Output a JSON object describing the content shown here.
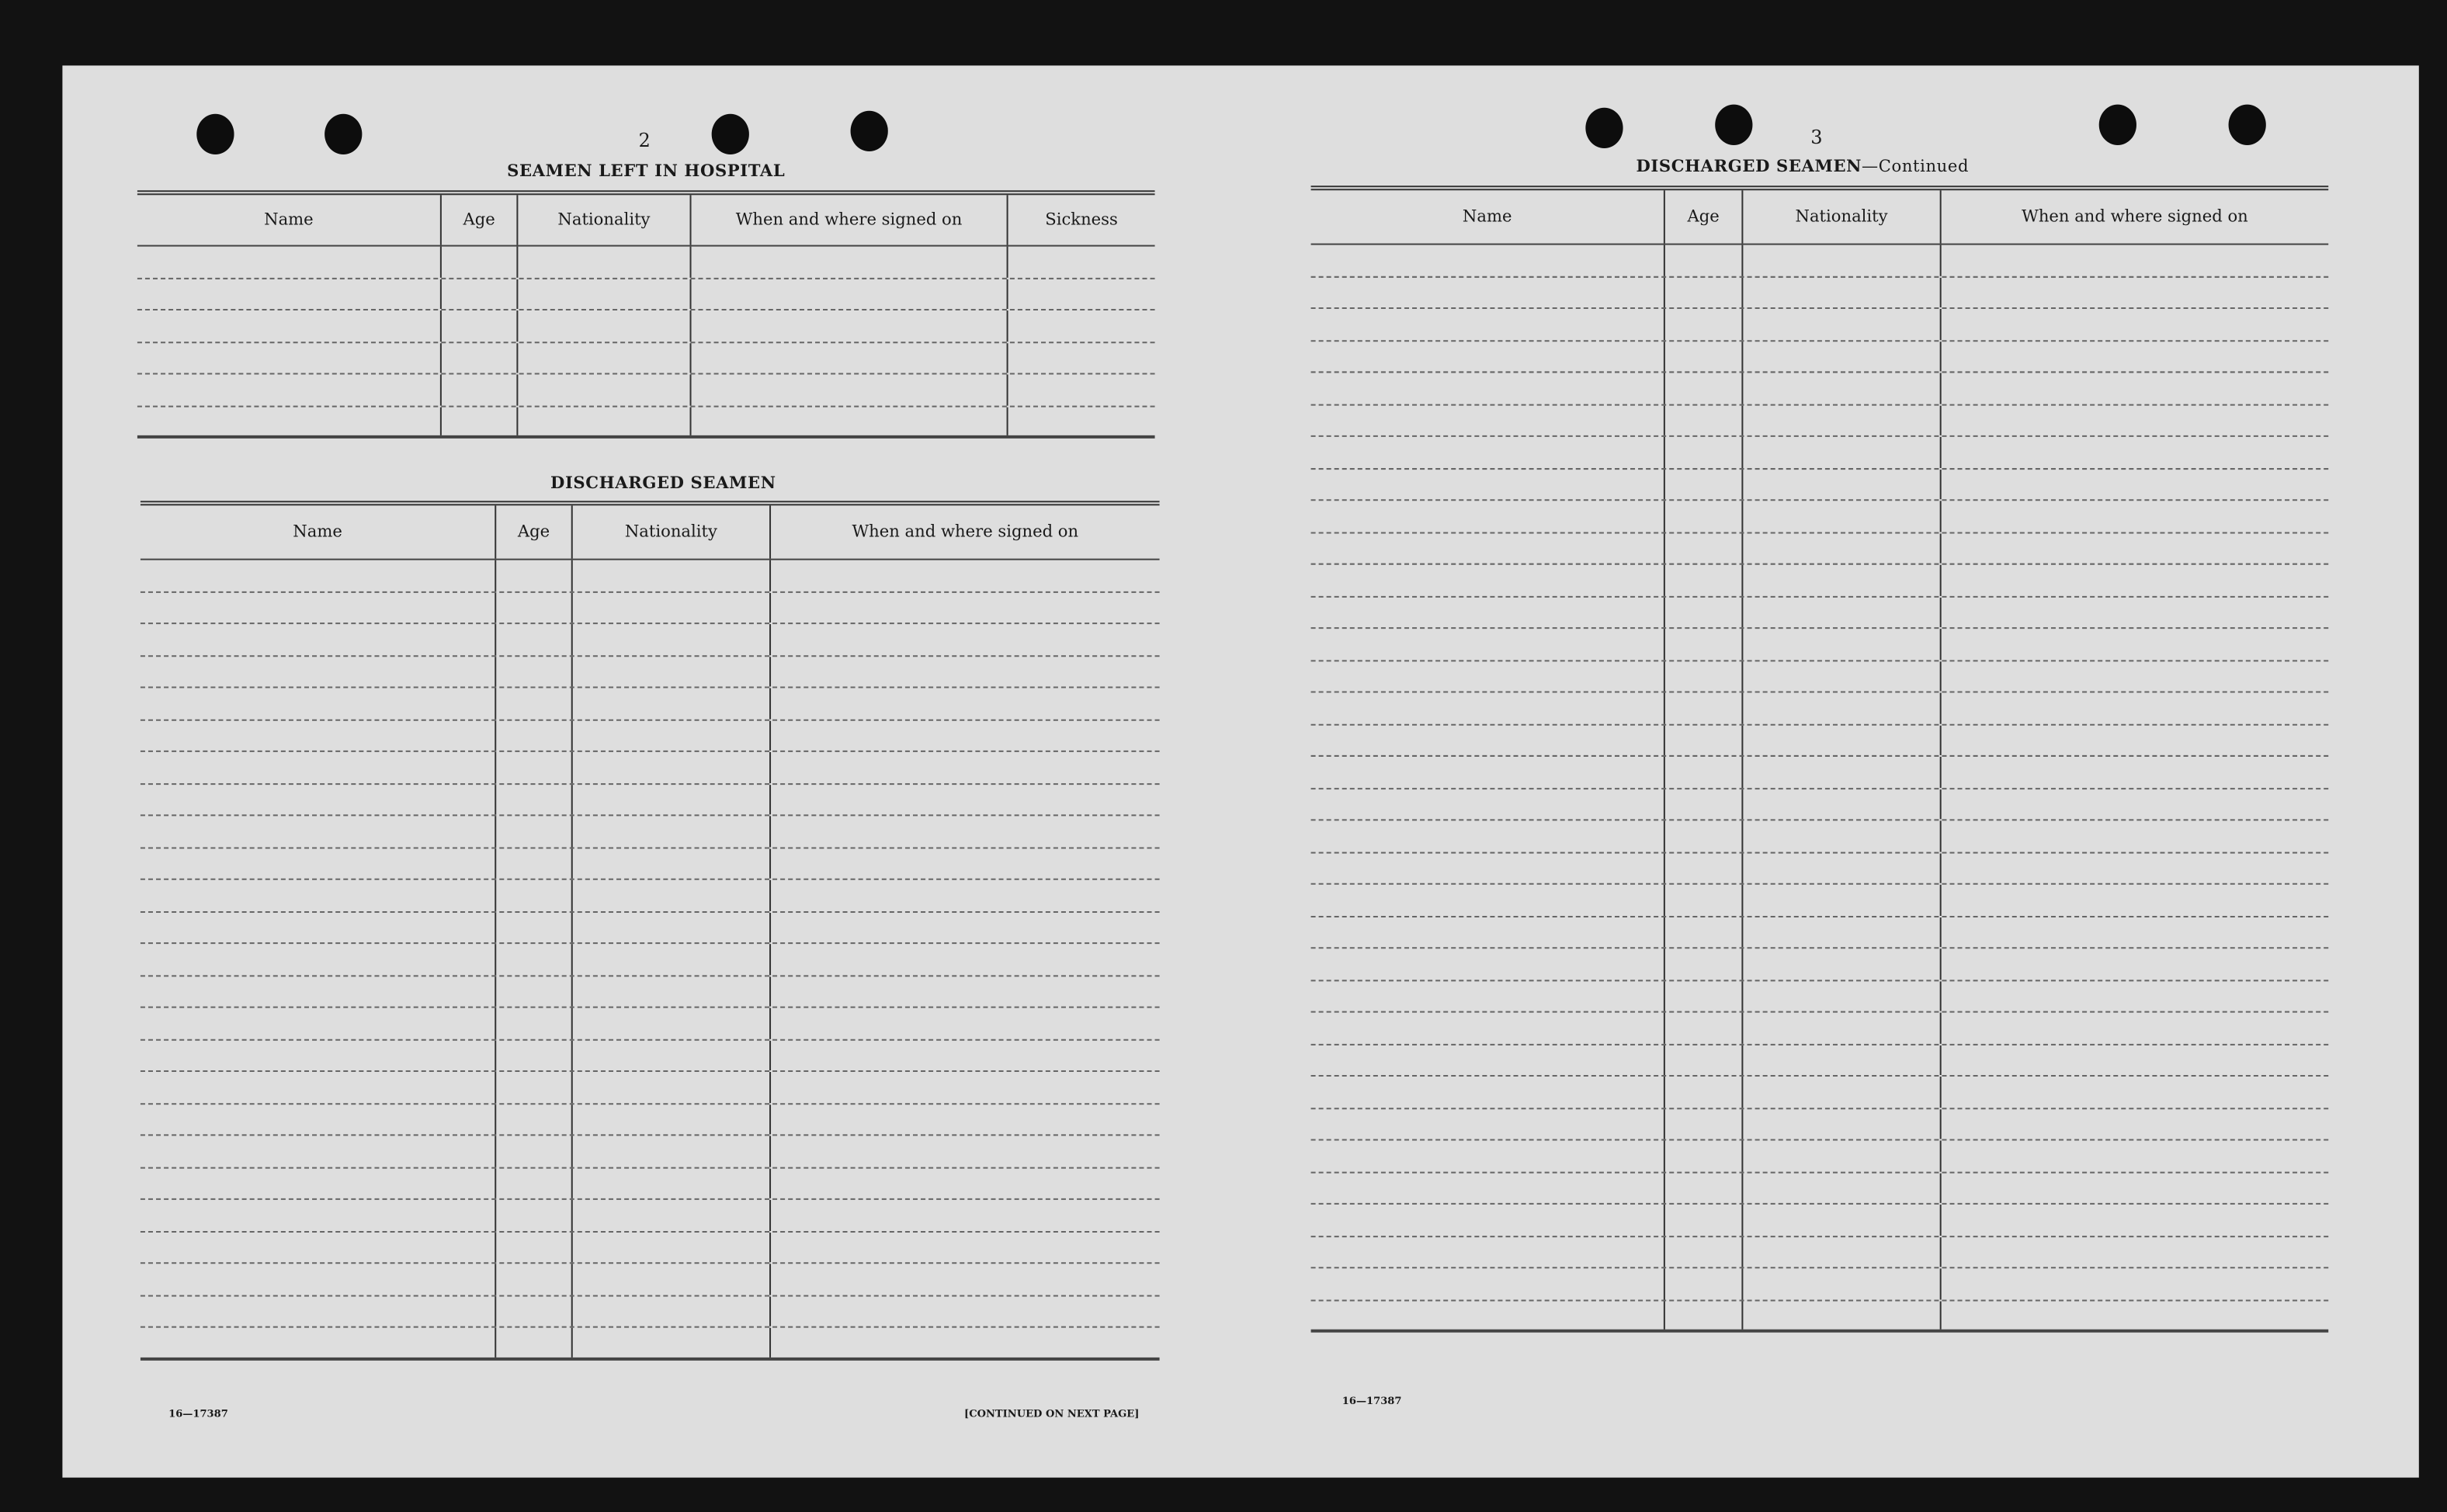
{
  "left_page": {
    "page_number": "2",
    "hospital": {
      "title": "SEAMEN LEFT IN HOSPITAL",
      "columns": [
        "Name",
        "Age",
        "Nationality",
        "When and where signed on",
        "Sickness"
      ]
    },
    "discharged": {
      "title": "DISCHARGED SEAMEN",
      "columns": [
        "Name",
        "Age",
        "Nationality",
        "When and where signed on"
      ]
    },
    "form_number": "16—17387",
    "continued_note": "[CONTINUED ON NEXT PAGE]"
  },
  "right_page": {
    "page_number": "3",
    "discharged": {
      "title": "DISCHARGED SEAMEN",
      "title_suffix": "—Continued",
      "columns": [
        "Name",
        "Age",
        "Nationality",
        "When and where signed on"
      ]
    },
    "form_number": "16—17387"
  },
  "colors": {
    "paper": "#dedede",
    "background": "#121212",
    "ink": "#1a1a1a"
  }
}
